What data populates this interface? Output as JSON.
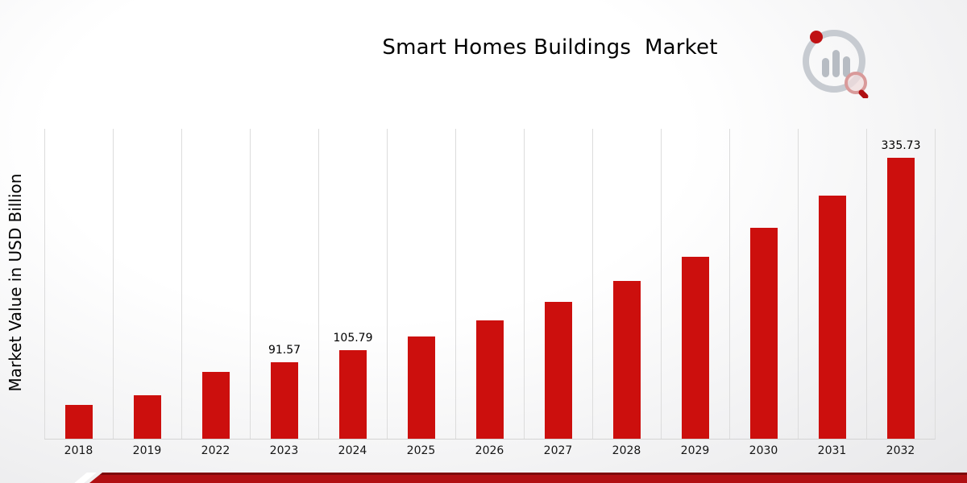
{
  "page": {
    "title": "Smart Homes Buildings  Market",
    "ylabel": "Market Value in USD Billion"
  },
  "chart_data": {
    "type": "bar",
    "title": "Smart Homes Buildings  Market",
    "xlabel": "",
    "ylabel": "Market Value in USD Billion",
    "categories": [
      "2018",
      "2019",
      "2022",
      "2023",
      "2024",
      "2025",
      "2026",
      "2027",
      "2028",
      "2029",
      "2030",
      "2031",
      "2032"
    ],
    "values": [
      40.6,
      52.0,
      79.3,
      91.57,
      105.79,
      122.2,
      141.2,
      163.1,
      188.4,
      217.6,
      251.4,
      290.5,
      335.73
    ],
    "data_labels": {
      "2023": "91.57",
      "2024": "105.79",
      "2032": "335.73"
    },
    "bar_color": "#cc0f0d",
    "ylim": [
      0,
      370
    ],
    "grid": "vertical-gridlines",
    "legend": "none"
  },
  "branding": {
    "logo_name": "market-research-future-logo",
    "ribbon_color": "#b11013",
    "ribbon_dark_color": "#7d0a0c"
  }
}
